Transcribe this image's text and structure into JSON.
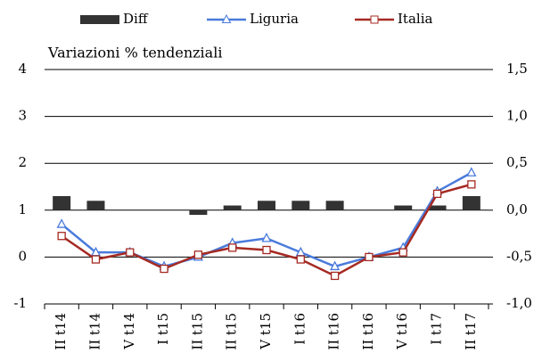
{
  "chart_data": {
    "type": "bar-line",
    "subtitle": "Variazioni % tendenziali",
    "categories": [
      "II t14",
      "II t14",
      "V t14",
      "I t15",
      "II t15",
      "II t15",
      "V t15",
      "I t16",
      "II t16",
      "II t16",
      "V t16",
      "I t17",
      "II t17"
    ],
    "series": [
      {
        "name": "Diff",
        "type": "bar",
        "axis": "y2",
        "color": "#333333",
        "values": [
          0.15,
          0.1,
          0,
          0,
          -0.05,
          0.05,
          0.1,
          0.1,
          0.1,
          0,
          0.05,
          0.05,
          0.15
        ]
      },
      {
        "name": "Liguria",
        "type": "line",
        "marker": "triangle",
        "color": "#4a7bdc",
        "values": [
          0.7,
          0.1,
          0.1,
          -0.2,
          0.0,
          0.3,
          0.4,
          0.1,
          -0.2,
          0.0,
          0.2,
          1.4,
          1.8
        ]
      },
      {
        "name": "Italia",
        "type": "line",
        "marker": "square",
        "color": "#a52a22",
        "values": [
          0.45,
          -0.05,
          0.1,
          -0.25,
          0.05,
          0.2,
          0.15,
          -0.05,
          -0.4,
          0.0,
          0.1,
          1.35,
          1.55
        ]
      }
    ],
    "ylim": [
      -1,
      4
    ],
    "yticks": [
      -1,
      0,
      1,
      2,
      3,
      4
    ],
    "y2lim": [
      -1.0,
      1.5
    ],
    "y2ticks": [
      {
        "value": -1.0,
        "label": "-1,0"
      },
      {
        "value": -0.5,
        "label": "-0,5"
      },
      {
        "value": 0.0,
        "label": "0,0"
      },
      {
        "value": 0.5,
        "label": "0,5"
      },
      {
        "value": 1.0,
        "label": "1,0"
      },
      {
        "value": 1.5,
        "label": "1,5"
      }
    ],
    "grid": true,
    "legend": "top"
  }
}
